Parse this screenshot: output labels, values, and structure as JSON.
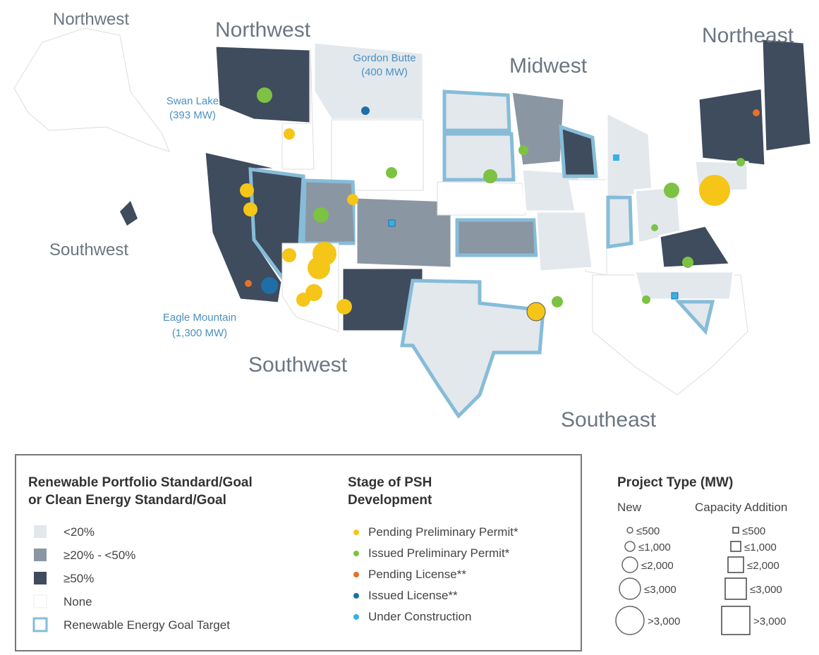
{
  "regions": {
    "alaska": "Northwest",
    "hawaii": "Southwest",
    "northwest": "Northwest",
    "midwest": "Midwest",
    "northeast": "Northeast",
    "southwest": "Southwest",
    "southeast": "Southeast"
  },
  "annotations": [
    {
      "lines": [
        "Gordon Butte",
        "(400 MW)"
      ]
    },
    {
      "lines": [
        "Swan Lake",
        "(393 MW)"
      ]
    },
    {
      "lines": [
        "Eagle Mountain",
        "(1,300 MW)"
      ]
    }
  ],
  "legend": {
    "standard": {
      "title": [
        "Renewable Portfolio Standard/Goal",
        "or Clean Energy Standard/Goal"
      ],
      "items": [
        "<20%",
        "≥20% - <50%",
        "≥50%",
        "None",
        "Renewable Energy Goal Target"
      ]
    },
    "stage": {
      "title": [
        "Stage of PSH",
        "Development"
      ],
      "items": [
        "Pending Preliminary Permit*",
        "Issued Preliminary Permit*",
        "Pending License**",
        "Issued License**",
        "Under Construction"
      ]
    },
    "project_type": {
      "title": "Project Type (MW)",
      "new": "New",
      "capacity_addition": "Capacity Addition",
      "sizes": [
        "≤500",
        "≤1,000",
        "≤2,000",
        "≤3,000",
        ">3,000"
      ]
    }
  }
}
